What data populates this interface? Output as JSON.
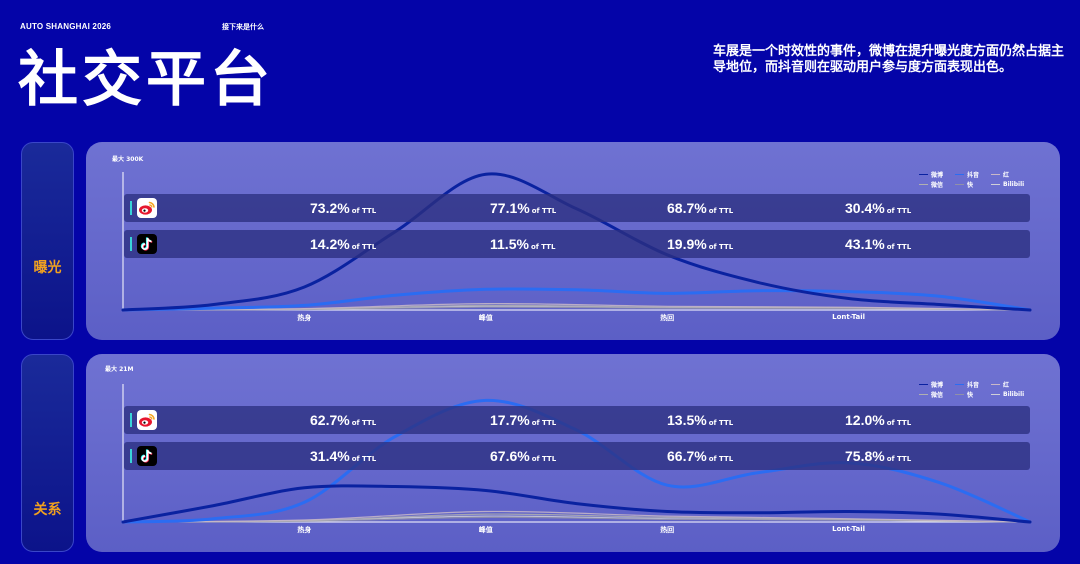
{
  "header": {
    "brand": "AUTO SHANGHAI 2026",
    "next": "接下来是什么",
    "title": "社交平台",
    "summary": "车展是一个时效性的事件，微博在提升曝光度方面仍然占据主导地位，而抖音则在驱动用户参与度方面表现出色。"
  },
  "colors": {
    "weibo": "#0a22a0",
    "douyin": "#2b6cf2",
    "xiaohongshu": "#b9a7b8",
    "weixin": "#a8a8a8",
    "kuaishou": "#9a9aa8",
    "bilibili": "#c0c0c8"
  },
  "legend": [
    {
      "name": "微博",
      "color": "#0a22a0"
    },
    {
      "name": "抖音",
      "color": "#2b6cf2"
    },
    {
      "name": "红",
      "color": "#c9b8c8"
    },
    {
      "name": "微信",
      "color": "#b0b0b0"
    },
    {
      "name": "快",
      "color": "#9090a8"
    },
    {
      "name": "Bilibili",
      "color": "#d0d0d8"
    }
  ],
  "stat_suffix": "of TTL",
  "platform_icons": [
    "weibo-icon",
    "douyin-icon"
  ],
  "chart_data": [
    {
      "type": "area",
      "side_label": "曝光",
      "max_label": "最大 300K",
      "categories": [
        "热身",
        "峰值",
        "热回",
        "Lont-Tail"
      ],
      "ylim": [
        0,
        300
      ],
      "series": [
        {
          "name": "微博",
          "x": [
            0,
            0.5,
            1,
            1.5,
            2,
            2.5,
            3,
            3.5,
            4,
            4.5,
            5
          ],
          "values": [
            0,
            12,
            50,
            170,
            295,
            220,
            120,
            60,
            25,
            12,
            0
          ]
        },
        {
          "name": "抖音",
          "x": [
            0,
            0.5,
            1,
            1.5,
            2,
            2.5,
            3,
            3.5,
            4,
            4.5,
            5
          ],
          "values": [
            0,
            4,
            10,
            32,
            45,
            44,
            36,
            42,
            40,
            30,
            0
          ]
        },
        {
          "name": "红",
          "x": [
            0,
            1,
            2,
            3,
            4,
            5
          ],
          "values": [
            0,
            3,
            14,
            8,
            6,
            0
          ]
        },
        {
          "name": "微信",
          "x": [
            0,
            1,
            2,
            3,
            4,
            5
          ],
          "values": [
            0,
            2,
            10,
            6,
            5,
            0
          ]
        },
        {
          "name": "快",
          "x": [
            0,
            1,
            2,
            3,
            4,
            5
          ],
          "values": [
            0,
            1,
            6,
            4,
            3,
            0
          ]
        },
        {
          "name": "Bilibili",
          "x": [
            0,
            1,
            2,
            3,
            4,
            5
          ],
          "values": [
            0,
            2,
            8,
            5,
            4,
            0
          ]
        }
      ],
      "share_rows": [
        {
          "platform": "微博",
          "values": [
            "73.2%",
            "77.1%",
            "68.7%",
            "30.4%"
          ]
        },
        {
          "platform": "抖音",
          "values": [
            "14.2%",
            "11.5%",
            "19.9%",
            "43.1%"
          ]
        }
      ]
    },
    {
      "type": "area",
      "side_label": "关系",
      "max_label": "最大 21M",
      "categories": [
        "热身",
        "峰值",
        "热回",
        "Lont-Tail"
      ],
      "ylim": [
        0,
        21
      ],
      "series": [
        {
          "name": "微博",
          "x": [
            0,
            0.5,
            1,
            1.5,
            2,
            2.5,
            3,
            3.5,
            4,
            4.5,
            5
          ],
          "values": [
            0,
            2.5,
            5.2,
            5.4,
            4.8,
            2.8,
            1.6,
            1.4,
            1.6,
            1.2,
            0
          ]
        },
        {
          "name": "抖音",
          "x": [
            0,
            0.5,
            1,
            1.5,
            2,
            2.5,
            3,
            3.5,
            4,
            4.5,
            5
          ],
          "values": [
            0,
            0.5,
            3.0,
            13.0,
            18.5,
            14.0,
            5.6,
            7.5,
            9.0,
            6.0,
            0
          ]
        },
        {
          "name": "红",
          "x": [
            0,
            1,
            2,
            3,
            4,
            5
          ],
          "values": [
            0,
            0.3,
            1.6,
            0.9,
            0.5,
            0
          ]
        },
        {
          "name": "微信",
          "x": [
            0,
            1,
            2,
            3,
            4,
            5
          ],
          "values": [
            0,
            0.2,
            1.2,
            0.7,
            0.4,
            0
          ]
        },
        {
          "name": "快",
          "x": [
            0,
            1,
            2,
            3,
            4,
            5
          ],
          "values": [
            0,
            0.1,
            0.7,
            0.4,
            0.3,
            0
          ]
        },
        {
          "name": "Bilibili",
          "x": [
            0,
            1,
            2,
            3,
            4,
            5
          ],
          "values": [
            0,
            0.2,
            0.9,
            0.5,
            0.3,
            0
          ]
        }
      ],
      "share_rows": [
        {
          "platform": "微博",
          "values": [
            "62.7%",
            "17.7%",
            "13.5%",
            "12.0%"
          ]
        },
        {
          "platform": "抖音",
          "values": [
            "31.4%",
            "67.6%",
            "66.7%",
            "75.8%"
          ]
        }
      ]
    }
  ]
}
